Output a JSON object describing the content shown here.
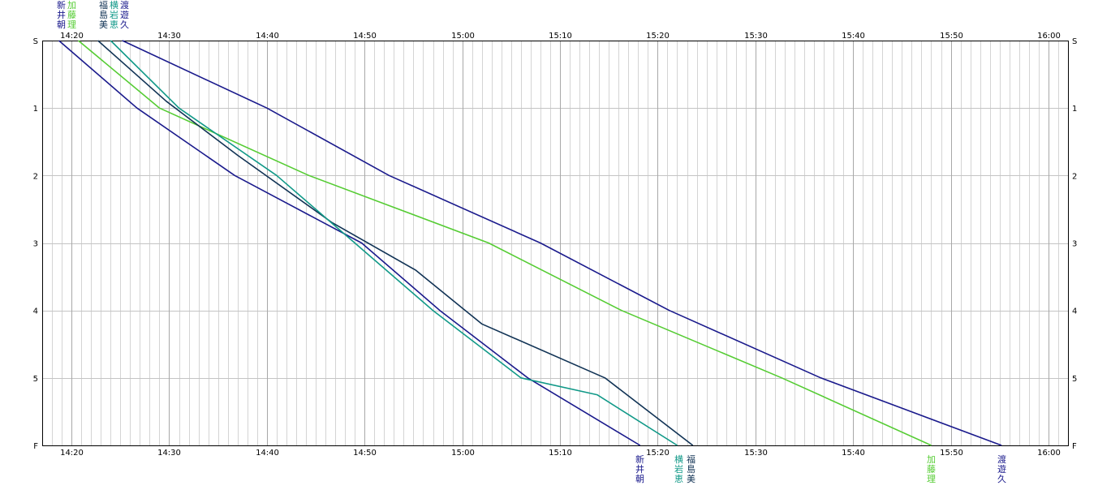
{
  "chart_data": {
    "type": "line",
    "x_labels": [
      "14:20",
      "14:30",
      "14:40",
      "14:50",
      "15:00",
      "15:10",
      "15:20",
      "15:30",
      "15:40",
      "15:50",
      "16:00"
    ],
    "xlim_minutes": [
      857,
      962
    ],
    "tick_step_minutes": 10,
    "minor_step_minutes": 1,
    "y_ticks": [
      {
        "label": "S",
        "value": 0
      },
      {
        "label": "1",
        "value": 1
      },
      {
        "label": "2",
        "value": 2
      },
      {
        "label": "3",
        "value": 3
      },
      {
        "label": "4",
        "value": 4
      },
      {
        "label": "5",
        "value": 5
      },
      {
        "label": "F",
        "value": 6
      }
    ],
    "grid": true,
    "series": [
      {
        "name": "新井朝",
        "chars": [
          "新",
          "井",
          "朝"
        ],
        "color": "#1a1a8c",
        "start_label_index": 0,
        "points": [
          [
            858.7,
            0
          ],
          [
            866.7,
            1
          ],
          [
            876.7,
            2
          ],
          [
            889.7,
            3
          ],
          [
            897.7,
            4
          ],
          [
            906.7,
            5
          ],
          [
            918.2,
            6
          ]
        ]
      },
      {
        "name": "加藤理",
        "chars": [
          "加",
          "藤",
          "理"
        ],
        "color": "#55cc33",
        "start_label_index": 1,
        "points": [
          [
            860.7,
            0
          ],
          [
            869.0,
            1
          ],
          [
            884.3,
            2
          ],
          [
            902.7,
            3
          ],
          [
            916.3,
            4
          ],
          [
            932.7,
            5
          ],
          [
            948.0,
            6
          ]
        ]
      },
      {
        "name": "福島美",
        "chars": [
          "福",
          "島",
          "美"
        ],
        "color": "#113355",
        "start_label_index": 2,
        "points": [
          [
            862.7,
            0
          ],
          [
            869.7,
            0.9
          ],
          [
            877.0,
            1.7
          ],
          [
            886.7,
            2.7
          ],
          [
            895.2,
            3.4
          ],
          [
            902.0,
            4.2
          ],
          [
            914.6,
            5
          ],
          [
            923.6,
            6
          ]
        ]
      },
      {
        "name": "横岩恵",
        "chars": [
          "横",
          "岩",
          "恵"
        ],
        "color": "#119988",
        "start_label_index": 3,
        "points": [
          [
            864.0,
            0
          ],
          [
            871.0,
            1
          ],
          [
            881.0,
            2
          ],
          [
            889.0,
            3
          ],
          [
            897.0,
            4
          ],
          [
            906.0,
            5
          ],
          [
            913.8,
            5.25
          ],
          [
            922.0,
            6
          ]
        ]
      },
      {
        "name": "渡遊久",
        "chars": [
          "渡",
          "遊",
          "久"
        ],
        "color": "#1a1a8c",
        "start_label_index": 4,
        "points": [
          [
            865.2,
            0
          ],
          [
            880.0,
            1
          ],
          [
            892.5,
            2
          ],
          [
            908.0,
            3
          ],
          [
            921.2,
            4
          ],
          [
            936.7,
            5
          ],
          [
            955.2,
            6
          ]
        ]
      }
    ],
    "end_label_groups": [
      {
        "members": [
          0
        ],
        "colors": [
          "#1a1a8c"
        ]
      },
      {
        "members": [
          3,
          2
        ],
        "colors": [
          "#119988",
          "#113355"
        ]
      },
      {
        "members": [
          1
        ],
        "colors": [
          "#55cc33"
        ]
      },
      {
        "members": [
          4
        ],
        "colors": [
          "#1a1a8c"
        ]
      }
    ],
    "title": "",
    "xlabel": "",
    "ylabel": ""
  }
}
